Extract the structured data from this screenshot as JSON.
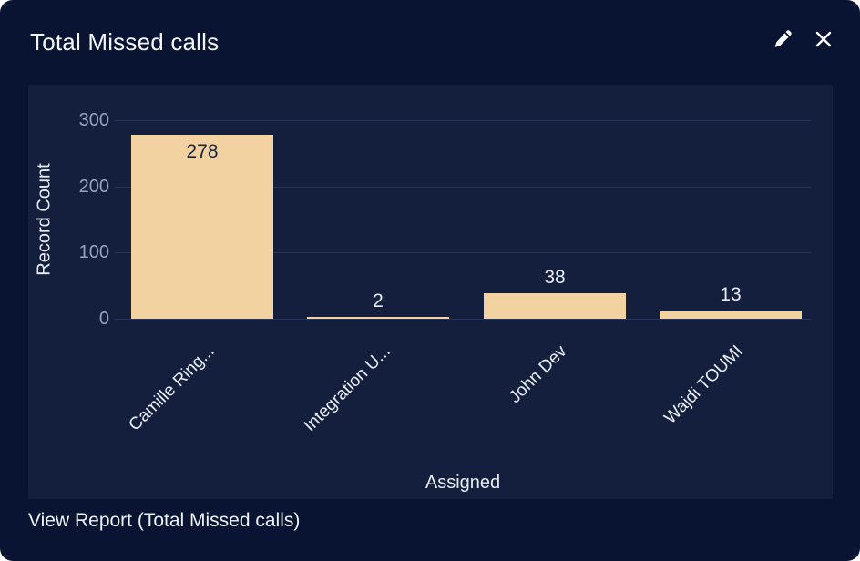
{
  "header": {
    "title": "Total Missed calls"
  },
  "footer": {
    "view_report_label": "View Report (Total Missed calls)"
  },
  "colors": {
    "card_bg": "#081431",
    "panel_bg": "#131f3c",
    "gridline": "#27345a",
    "bar_fill": "#f3d2a2",
    "tick_label": "#97a3c0",
    "axis_title": "#e8ebf3",
    "value_label_dark": "#182440",
    "value_label_light": "#e8ebf3",
    "title_text": "#f4f6fb",
    "icon": "#ffffff"
  },
  "chart_data": {
    "type": "bar",
    "title": "Total Missed calls",
    "categories": [
      "Camille Ring...",
      "Integration U...",
      "John Dev",
      "Wajdi TOUMI"
    ],
    "values": [
      278,
      2,
      38,
      13
    ],
    "xlabel": "Assigned",
    "ylabel": "Record Count",
    "yticks": [
      0,
      100,
      200,
      300
    ],
    "ylim": [
      0,
      300
    ],
    "grid": true,
    "legend": false,
    "value_labels": true
  }
}
